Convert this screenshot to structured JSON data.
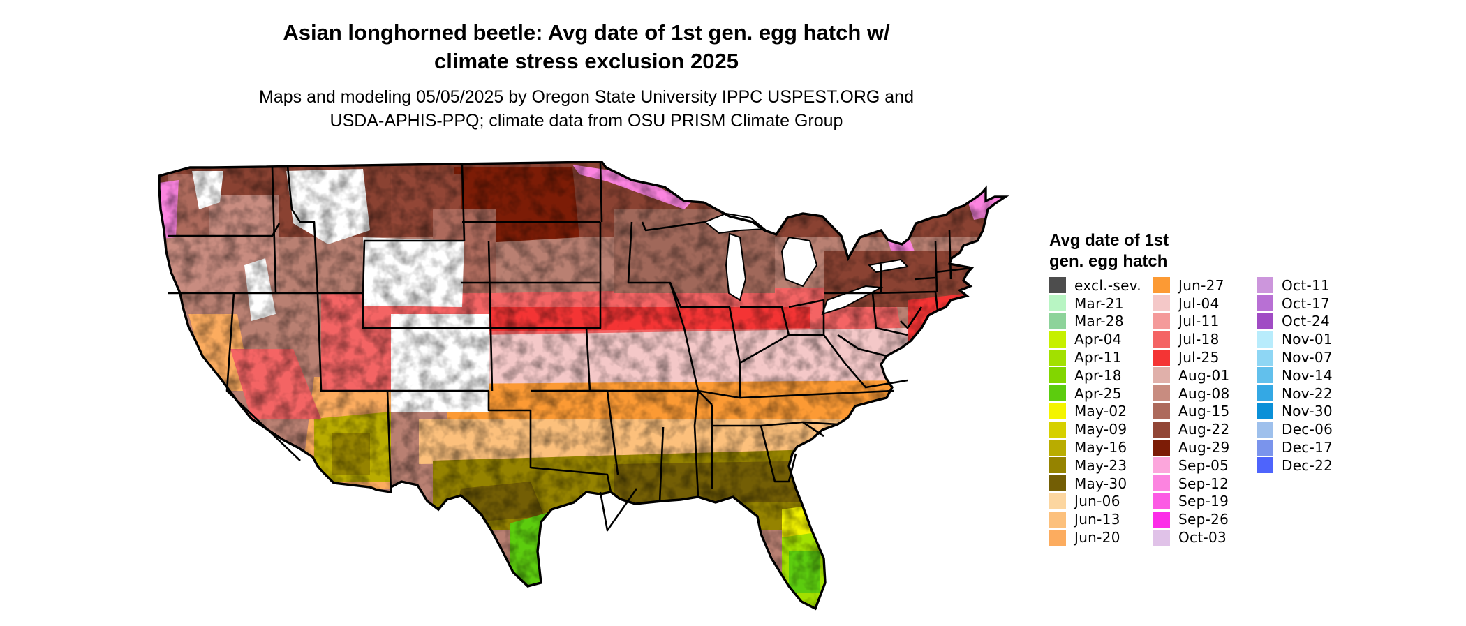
{
  "title_lines": [
    "Asian longhorned beetle: Avg date of 1st gen. egg hatch w/",
    "climate stress exclusion 2025"
  ],
  "subtitle_lines": [
    "Maps and modeling 05/05/2025 by Oregon State University IPPC USPEST.ORG and",
    "USDA-APHIS-PPQ; climate data from OSU PRISM Climate Group"
  ],
  "legend": {
    "title_lines": [
      "Avg date of 1st",
      "gen. egg hatch"
    ],
    "columns": [
      [
        {
          "label": "excl.-sev.",
          "color": "#4d4d4d"
        },
        {
          "label": "Mar-21",
          "color": "#b8f5c3"
        },
        {
          "label": "Mar-28",
          "color": "#8dd39a"
        },
        {
          "label": "Apr-04",
          "color": "#c6f000"
        },
        {
          "label": "Apr-11",
          "color": "#a2e000"
        },
        {
          "label": "Apr-18",
          "color": "#82d600"
        },
        {
          "label": "Apr-25",
          "color": "#5ccc0e"
        },
        {
          "label": "May-02",
          "color": "#f4f400"
        },
        {
          "label": "May-09",
          "color": "#d6d000"
        },
        {
          "label": "May-16",
          "color": "#b9ac00"
        },
        {
          "label": "May-23",
          "color": "#958300"
        },
        {
          "label": "May-30",
          "color": "#735e05"
        },
        {
          "label": "Jun-06",
          "color": "#fcd6a0"
        },
        {
          "label": "Jun-13",
          "color": "#fcc07c"
        },
        {
          "label": "Jun-20",
          "color": "#fcac5f"
        }
      ],
      [
        {
          "label": "Jun-27",
          "color": "#fc9a34"
        },
        {
          "label": "Jul-04",
          "color": "#f4c8c8"
        },
        {
          "label": "Jul-11",
          "color": "#f49a9a"
        },
        {
          "label": "Jul-18",
          "color": "#f46464"
        },
        {
          "label": "Jul-25",
          "color": "#f43434"
        },
        {
          "label": "Aug-01",
          "color": "#e0b0aa"
        },
        {
          "label": "Aug-08",
          "color": "#c88c80"
        },
        {
          "label": "Aug-15",
          "color": "#ad6a5c"
        },
        {
          "label": "Aug-22",
          "color": "#924636"
        },
        {
          "label": "Aug-29",
          "color": "#7c1c06"
        },
        {
          "label": "Sep-05",
          "color": "#fca6dc"
        },
        {
          "label": "Sep-12",
          "color": "#fc84e0"
        },
        {
          "label": "Sep-19",
          "color": "#fc5ae4"
        },
        {
          "label": "Sep-26",
          "color": "#fc2ce8"
        },
        {
          "label": "Oct-03",
          "color": "#e0c2e8"
        }
      ],
      [
        {
          "label": "Oct-11",
          "color": "#cc96dc"
        },
        {
          "label": "Oct-17",
          "color": "#b870d4"
        },
        {
          "label": "Oct-24",
          "color": "#a04cc4"
        },
        {
          "label": "Nov-01",
          "color": "#b8ecfc"
        },
        {
          "label": "Nov-07",
          "color": "#8ed6f4"
        },
        {
          "label": "Nov-14",
          "color": "#62c0ec"
        },
        {
          "label": "Nov-22",
          "color": "#34a8e4"
        },
        {
          "label": "Nov-30",
          "color": "#0a90d8"
        },
        {
          "label": "Dec-06",
          "color": "#9ec0ec"
        },
        {
          "label": "Dec-17",
          "color": "#7a94ec"
        },
        {
          "label": "Dec-22",
          "color": "#4e64fc"
        }
      ]
    ]
  }
}
